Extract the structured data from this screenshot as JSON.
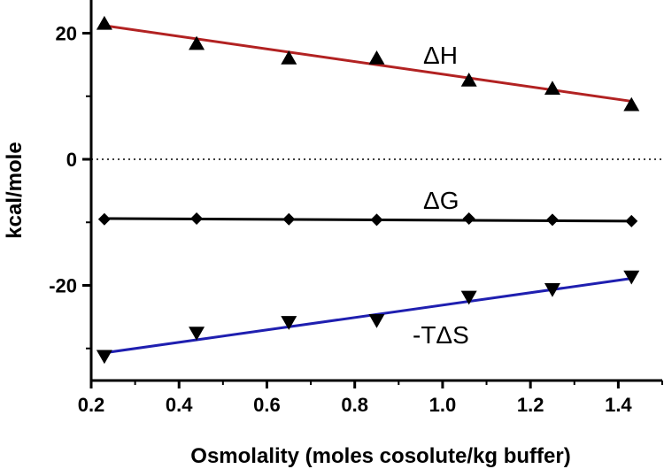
{
  "chart_data": {
    "type": "scatter",
    "xlabel": "Osmolality (moles cosolute/kg buffer)",
    "ylabel": "kcal/mole",
    "xlim": [
      0.2,
      1.5
    ],
    "ylim": [
      -35,
      25
    ],
    "xticks": [
      "0.2",
      "0.4",
      "0.6",
      "0.8",
      "1.0",
      "1.2",
      "1.4"
    ],
    "yticks": [
      "20",
      "0",
      "-20"
    ],
    "reference_line": {
      "y": 0,
      "style": "dotted"
    },
    "x": [
      0.23,
      0.44,
      0.65,
      0.85,
      1.06,
      1.25,
      1.43
    ],
    "series": [
      {
        "name": "ΔH",
        "marker": "triangle-up",
        "values": [
          21.5,
          18.3,
          16.0,
          16.0,
          12.5,
          11.2,
          8.6
        ],
        "fit": [
          21.2,
          9.2
        ],
        "line_color": "#b22222"
      },
      {
        "name": "ΔG",
        "marker": "diamond",
        "values": [
          -9.5,
          -9.4,
          -9.5,
          -9.6,
          -9.4,
          -9.6,
          -9.8
        ],
        "fit": [
          -9.4,
          -9.8
        ],
        "line_color": "#000000"
      },
      {
        "name": "-TΔS",
        "marker": "triangle-down",
        "values": [
          -31.2,
          -27.5,
          -25.8,
          -25.5,
          -21.8,
          -20.6,
          -18.6
        ],
        "fit": [
          -30.7,
          -18.9
        ],
        "line_color": "#1f1fb0"
      }
    ]
  }
}
